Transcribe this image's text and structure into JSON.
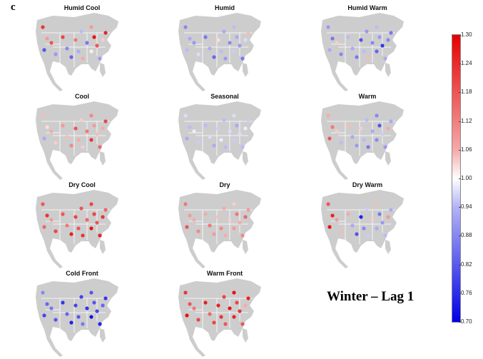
{
  "panel_letter": "c",
  "season_label": "Winter – Lag 1",
  "colorbar": {
    "min": 0.7,
    "max": 1.3,
    "ticks": [
      "1.30",
      "1.24",
      "1.18",
      "1.12",
      "1.06",
      "1.00",
      "0.94",
      "0.88",
      "0.82",
      "0.76",
      "0.70"
    ],
    "colors": {
      "high": "#e60000",
      "mid": "#ffffff",
      "low": "#0000e6"
    }
  },
  "map_colors": {
    "land": "#cdcdcd",
    "border": "#ffffff"
  },
  "panels": [
    {
      "title": "Humid Cool",
      "values": [
        1.24,
        1.12,
        0.8,
        1.2,
        0.88,
        1.22,
        0.86,
        0.82,
        1.16,
        0.9,
        1.1,
        0.84,
        1.02,
        1.28,
        1.2,
        0.88,
        1.06,
        1.26,
        1.12,
        0.92
      ]
    },
    {
      "title": "Humid",
      "values": [
        0.86,
        0.9,
        0.92,
        0.88,
        0.96,
        0.84,
        0.9,
        0.82,
        1.04,
        0.92,
        0.88,
        0.86,
        0.94,
        0.9,
        0.88,
        0.84,
        0.96,
        1.08,
        0.92,
        0.9
      ]
    },
    {
      "title": "Humid Warm",
      "values": [
        0.88,
        0.84,
        0.9,
        1.06,
        0.86,
        0.92,
        0.9,
        0.84,
        0.8,
        0.92,
        1.08,
        0.86,
        0.82,
        0.88,
        0.76,
        0.9,
        0.86,
        0.84,
        0.92,
        0.88
      ]
    },
    {
      "title": "Cool",
      "values": [
        1.08,
        1.04,
        0.9,
        1.1,
        1.06,
        1.12,
        1.08,
        1.14,
        1.2,
        1.1,
        1.06,
        1.16,
        1.24,
        1.12,
        1.08,
        1.18,
        1.1,
        1.22,
        1.14,
        1.06
      ]
    },
    {
      "title": "Seasonal",
      "values": [
        0.96,
        0.92,
        0.9,
        0.98,
        0.94,
        0.92,
        0.96,
        0.9,
        0.94,
        0.98,
        0.92,
        0.96,
        0.94,
        0.9,
        0.96,
        0.92,
        0.98,
        0.94,
        0.96,
        0.92
      ]
    },
    {
      "title": "Warm",
      "values": [
        1.1,
        1.16,
        1.2,
        1.06,
        0.92,
        1.08,
        0.9,
        0.88,
        1.06,
        0.92,
        0.84,
        0.9,
        0.86,
        0.8,
        0.94,
        0.88,
        1.1,
        0.9,
        0.86,
        0.92
      ]
    },
    {
      "title": "Dry Cool",
      "values": [
        1.2,
        1.24,
        1.18,
        1.12,
        1.22,
        1.2,
        1.16,
        1.26,
        1.22,
        1.2,
        1.24,
        1.18,
        1.28,
        1.22,
        1.2,
        1.26,
        1.24,
        1.18,
        1.22,
        1.2
      ]
    },
    {
      "title": "Dry",
      "values": [
        1.16,
        1.12,
        1.2,
        1.1,
        1.14,
        1.1,
        1.16,
        1.12,
        1.08,
        1.14,
        1.1,
        1.06,
        1.12,
        1.16,
        1.1,
        1.14,
        1.18,
        1.12,
        1.06,
        1.1
      ]
    },
    {
      "title": "Dry Warm",
      "values": [
        1.2,
        1.26,
        1.28,
        1.12,
        1.08,
        1.1,
        0.9,
        0.8,
        0.74,
        0.86,
        0.94,
        1.06,
        0.9,
        0.84,
        0.88,
        0.92,
        1.12,
        0.9,
        1.08,
        0.94
      ]
    },
    {
      "title": "Cold Front",
      "values": [
        0.86,
        0.82,
        0.78,
        0.84,
        0.8,
        0.76,
        0.82,
        0.74,
        0.78,
        0.8,
        0.84,
        0.76,
        0.72,
        0.8,
        0.78,
        0.74,
        0.82,
        0.76,
        0.8,
        0.78
      ]
    },
    {
      "title": "Warm Front",
      "values": [
        1.24,
        1.2,
        1.28,
        1.16,
        1.22,
        1.26,
        1.18,
        1.22,
        1.26,
        1.24,
        1.2,
        1.28,
        1.26,
        1.22,
        1.24,
        1.2,
        1.1,
        1.26,
        1.28,
        1.22
      ]
    }
  ]
}
